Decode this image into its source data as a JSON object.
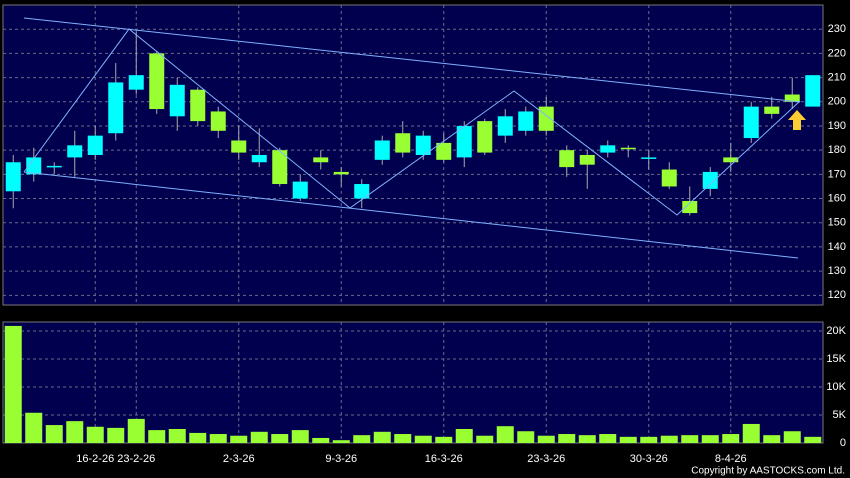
{
  "chart_data": [
    {
      "type": "candlestick",
      "open": [
        163,
        170,
        173,
        177,
        178,
        187,
        205,
        220,
        194,
        205,
        196,
        184,
        175,
        180,
        160,
        177,
        171,
        160,
        176,
        187,
        178,
        183,
        177,
        192,
        186,
        188,
        198,
        180,
        178,
        179,
        181,
        177,
        172,
        159,
        164,
        177,
        185,
        198,
        203,
        198
      ],
      "high": [
        178,
        181,
        175,
        188,
        190,
        216,
        229,
        221,
        210,
        206,
        198,
        190,
        189,
        181,
        170,
        180,
        173,
        168,
        186,
        192,
        188,
        187,
        192,
        193,
        197,
        198,
        202,
        182,
        180,
        184,
        182,
        180,
        175,
        165,
        173,
        183,
        200,
        202,
        210,
        211
      ],
      "low": [
        156,
        167,
        170,
        169,
        176,
        184,
        203,
        195,
        188,
        190,
        185,
        176,
        173,
        165,
        159,
        172,
        165,
        156,
        174,
        177,
        176,
        175,
        173,
        178,
        183,
        186,
        186,
        169,
        164,
        177,
        177,
        172,
        164,
        153,
        161,
        171,
        183,
        193,
        197,
        198
      ],
      "close": [
        175,
        177,
        173.5,
        182,
        186,
        208,
        211,
        197,
        207,
        192,
        188,
        179,
        178,
        166,
        167,
        175,
        170,
        166,
        184,
        179,
        186,
        176,
        190,
        179,
        194,
        196,
        188,
        173,
        174,
        182,
        180.5,
        177,
        165,
        154,
        171,
        175,
        198,
        195,
        200,
        211
      ],
      "up_color": "#00ffff",
      "down_color": "#99ff33",
      "ylim": [
        116,
        240
      ],
      "yticks": [
        120,
        130,
        140,
        150,
        160,
        170,
        180,
        190,
        200,
        210,
        220,
        230
      ],
      "grid": true
    },
    {
      "type": "bar",
      "categories": [
        null,
        null,
        null,
        null,
        "16-2-26",
        null,
        "23-2-26",
        null,
        null,
        null,
        null,
        "2-3-26",
        null,
        null,
        null,
        null,
        "9-3-26",
        null,
        null,
        null,
        null,
        "16-3-26",
        null,
        null,
        null,
        null,
        "23-3-26",
        null,
        null,
        null,
        null,
        "30-3-26",
        null,
        null,
        null,
        "8-4-26",
        null,
        null,
        null,
        null
      ],
      "values": [
        20900,
        5400,
        3200,
        3900,
        2900,
        2700,
        4300,
        2300,
        2500,
        1800,
        1600,
        1300,
        2000,
        1600,
        2300,
        900,
        500,
        1400,
        2000,
        1600,
        1300,
        1100,
        2500,
        1300,
        3000,
        2100,
        1300,
        1600,
        1400,
        1600,
        1100,
        1100,
        1300,
        1400,
        1400,
        1600,
        3400,
        1400,
        2100,
        1100
      ],
      "color": "#99ff33",
      "ylim": [
        0,
        21600
      ],
      "yticks": [
        0,
        {
          "value": 5000,
          "label": "5K"
        },
        {
          "value": 10000,
          "label": "10K"
        },
        {
          "value": 15000,
          "label": "15K"
        },
        {
          "value": 20000,
          "label": "20K"
        }
      ],
      "grid": true,
      "copyright": "Copyright by AASTOCKS.com Ltd."
    }
  ]
}
